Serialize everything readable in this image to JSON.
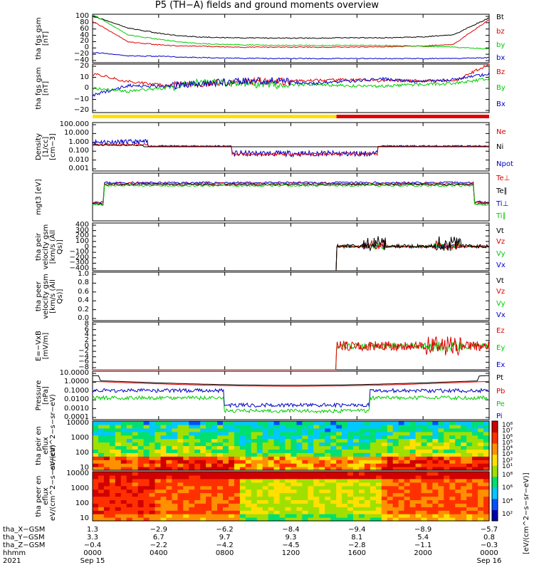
{
  "title": "P5 (TH−A) fields and ground moments overview",
  "chart_data": [
    {
      "type": "line",
      "panel": "fgs_gsm",
      "ylabel": "tha fgs gsm [nT]",
      "ylim": [
        -40,
        100
      ],
      "ticks": [
        "100",
        "80",
        "60",
        "40",
        "20",
        "0",
        "−20",
        "−40"
      ],
      "series": [
        {
          "name": "Bt",
          "color": "#000000",
          "values": [
            95,
            60,
            42,
            34,
            32,
            31,
            31,
            32,
            32,
            34,
            40,
            90
          ]
        },
        {
          "name": "bz",
          "color": "#e00000",
          "values": [
            80,
            20,
            10,
            8,
            5,
            5,
            5,
            5,
            6,
            8,
            12,
            85
          ]
        },
        {
          "name": "by",
          "color": "#00cc00",
          "values": [
            100,
            40,
            25,
            15,
            12,
            10,
            10,
            10,
            10,
            8,
            5,
            0
          ]
        },
        {
          "name": "bx",
          "color": "#0000cc",
          "values": [
            -10,
            -20,
            -22,
            -25,
            -27,
            -28,
            -28,
            -28,
            -28,
            -28,
            -28,
            -25
          ]
        }
      ]
    },
    {
      "type": "line",
      "panel": "fgs_gsm_zoom",
      "ylabel": "tha fgs gsm [nT]",
      "ylim": [
        -30,
        20
      ],
      "ticks": [
        "20",
        "10",
        "0",
        "−10",
        "−20"
      ],
      "series": [
        {
          "name": "Bz",
          "color": "#e00000",
          "values": [
            10,
            2,
            -2,
            0,
            2,
            2,
            3,
            4,
            3,
            3,
            2,
            20
          ]
        },
        {
          "name": "By",
          "color": "#00cc00",
          "values": [
            -5,
            -8,
            -5,
            2,
            0,
            -2,
            -1,
            -2,
            -3,
            -1,
            0,
            5
          ]
        },
        {
          "name": "Bx",
          "color": "#0000cc",
          "values": [
            -12,
            -2,
            -3,
            0,
            2,
            3,
            0,
            2,
            5,
            2,
            4,
            10
          ]
        }
      ]
    },
    {
      "type": "line",
      "panel": "density",
      "ylabel": "Density [1/cc] [cm−3]",
      "ylim": [
        0.0001,
        1000
      ],
      "scale": "log",
      "ticks": [
        "100.000",
        "10.000",
        "1.000",
        "0.100",
        "0.010",
        "0.001"
      ],
      "series": [
        {
          "name": "Ne",
          "color": "#e00000"
        },
        {
          "name": "Ni",
          "color": "#000000"
        },
        {
          "name": "Npot",
          "color": "#0000cc"
        }
      ]
    },
    {
      "type": "line",
      "panel": "temperature",
      "ylabel": "mgt3 [eV]",
      "scale": "log",
      "series": [
        {
          "name": "Te⊥",
          "color": "#e00000"
        },
        {
          "name": "Te∥",
          "color": "#000000"
        },
        {
          "name": "Ti⊥",
          "color": "#0000cc"
        },
        {
          "name": "Ti∥",
          "color": "#00cc00"
        }
      ]
    },
    {
      "type": "line",
      "panel": "peir_velocity",
      "ylabel": "tha peir velocity gsm [km/s (All Qs)]",
      "ylim": [
        -400,
        400
      ],
      "ticks": [
        "400",
        "300",
        "200",
        "100",
        "0",
        "−100",
        "−200",
        "−300",
        "−400"
      ],
      "series": [
        {
          "name": "Vt",
          "color": "#000000"
        },
        {
          "name": "Vz",
          "color": "#e00000"
        },
        {
          "name": "Vy",
          "color": "#00cc00"
        },
        {
          "name": "Vx",
          "color": "#0000cc"
        }
      ]
    },
    {
      "type": "line",
      "panel": "peer_velocity",
      "ylabel": "tha peer velocity gsm [km/s (All Qs)]",
      "ylim": [
        0,
        1
      ],
      "ticks": [
        "1.0",
        "0.8",
        "0.6",
        "0.4",
        "0.2",
        "0.0"
      ],
      "series": [
        {
          "name": "Vt",
          "color": "#000000"
        },
        {
          "name": "Vz",
          "color": "#e00000"
        },
        {
          "name": "Vy",
          "color": "#00cc00"
        },
        {
          "name": "Vx",
          "color": "#0000cc"
        }
      ]
    },
    {
      "type": "line",
      "panel": "efield",
      "ylabel": "E=−VxB [mV/m]",
      "ylim": [
        -8,
        8
      ],
      "ticks": [
        "8",
        "6",
        "4",
        "2",
        "0",
        "−2",
        "−4",
        "−6",
        "−8"
      ],
      "series": [
        {
          "name": "Ez",
          "color": "#e00000"
        },
        {
          "name": "Ey",
          "color": "#00cc00"
        },
        {
          "name": "Ex",
          "color": "#0000cc"
        }
      ]
    },
    {
      "type": "line",
      "panel": "pressure",
      "ylabel": "Pressure [nPa]",
      "ylim": [
        0.0001,
        100
      ],
      "scale": "log",
      "ticks": [
        "10.0000",
        "1.0000",
        "0.1000",
        "0.0100",
        "0.0010",
        "0.0001"
      ],
      "series": [
        {
          "name": "Pt",
          "color": "#000000"
        },
        {
          "name": "Pb",
          "color": "#e00000"
        },
        {
          "name": "Pe",
          "color": "#00cc00"
        },
        {
          "name": "Pi",
          "color": "#0000cc"
        }
      ]
    },
    {
      "type": "heatmap",
      "panel": "peir_en_eflux",
      "ylabel": "tha peir en eflux eV/(cm^2−s−sr−eV)",
      "ylim": [
        10,
        10000
      ],
      "scale": "log",
      "ticks": [
        "10000",
        "1000",
        "100",
        "10"
      ]
    },
    {
      "type": "heatmap",
      "panel": "peer_en_eflux",
      "ylabel": "tha peer en eflux eV/(cm^2−s−sr−eV)",
      "ylim": [
        10,
        10000
      ],
      "scale": "log",
      "ticks": [
        "10000",
        "1000",
        "100",
        "10"
      ]
    }
  ],
  "colorbar": {
    "label": "[eV/(cm^2−s−sr−eV)]",
    "upper_ticks": [
      "10⁸",
      "10⁷",
      "10⁶",
      "10⁵",
      "10⁴",
      "10³",
      "10²",
      "10¹"
    ],
    "lower_ticks": [
      "10⁸",
      "10⁶",
      "10⁴",
      "10²"
    ]
  },
  "legends": {
    "p1": [
      "Bt",
      "bz",
      "by",
      "bx"
    ],
    "p2": [
      "Bz",
      "By",
      "Bx"
    ],
    "p3": [
      "Ne",
      "Ni",
      "Npot"
    ],
    "p4": [
      "Te⊥",
      "Te∥",
      "Ti⊥",
      "Ti∥"
    ],
    "p5": [
      "Vt",
      "Vz",
      "Vy",
      "Vx"
    ],
    "p6": [
      "Vt",
      "Vz",
      "Vy",
      "Vx"
    ],
    "p7": [
      "Ez",
      "Ey",
      "Ex"
    ],
    "p8": [
      "Pt",
      "Pb",
      "Pe",
      "Pi"
    ]
  },
  "orbit": {
    "labels": [
      "tha_X−GSM",
      "tha_Y−GSM",
      "tha_Z−GSM",
      "hhmm",
      "2021"
    ],
    "columns": [
      {
        "x": "1.3",
        "y": "3.3",
        "z": "−0.4",
        "t": "0000",
        "d": "Sep 15"
      },
      {
        "x": "−2.9",
        "y": "6.7",
        "z": "−2.2",
        "t": "0400",
        "d": ""
      },
      {
        "x": "−6.2",
        "y": "9.7",
        "z": "−4.2",
        "t": "0800",
        "d": ""
      },
      {
        "x": "−8.4",
        "y": "9.3",
        "z": "−4.5",
        "t": "1200",
        "d": ""
      },
      {
        "x": "−9.4",
        "y": "8.1",
        "z": "−2.8",
        "t": "1600",
        "d": ""
      },
      {
        "x": "−8.9",
        "y": "5.4",
        "z": "−1.1",
        "t": "2000",
        "d": ""
      },
      {
        "x": "−5.7",
        "y": "0.8",
        "z": "−0.3",
        "t": "0000",
        "d": "Sep 16"
      }
    ]
  }
}
